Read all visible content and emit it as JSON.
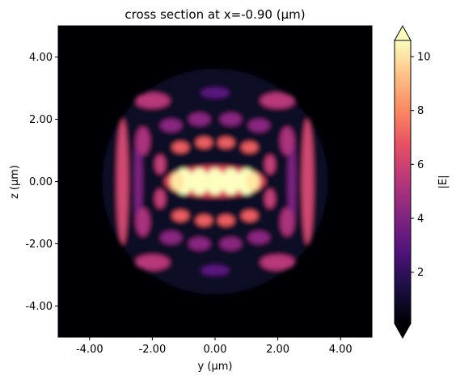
{
  "chart_data": {
    "type": "heatmap",
    "title": "cross section at x=-0.90 (μm)",
    "xlabel": "y (μm)",
    "ylabel": "z (μm)",
    "xlim": [
      -5,
      5
    ],
    "ylim": [
      -5,
      5
    ],
    "x_ticks": [
      -4,
      -2,
      0,
      2,
      4
    ],
    "x_tick_labels": [
      "-4.00",
      "-2.00",
      "0.00",
      "2.00",
      "4.00"
    ],
    "y_ticks": [
      -4,
      -2,
      0,
      2,
      4
    ],
    "y_tick_labels": [
      "-4.00",
      "-2.00",
      "0.00",
      "2.00",
      "4.00"
    ],
    "colormap": "magma",
    "colorbar": {
      "label": "|E|",
      "range": [
        0.1,
        10.6
      ],
      "ticks": [
        2,
        4,
        6,
        8,
        10
      ],
      "tick_labels": [
        "2",
        "4",
        "6",
        "8",
        "10"
      ],
      "extend": "both"
    },
    "description_of_field": {
      "central_lobes_y": [
        -1.0,
        -0.5,
        0.0,
        0.5,
        1.0
      ],
      "central_lobes_z": 0.0,
      "max_value": 10.6
    }
  }
}
